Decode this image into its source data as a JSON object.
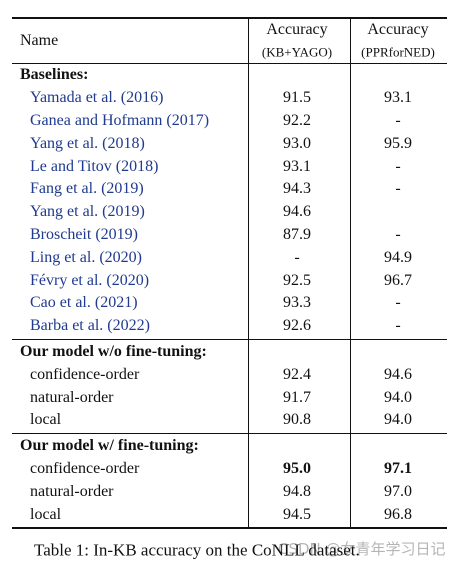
{
  "table": {
    "header": {
      "name": "Name",
      "col1": [
        "Accuracy",
        "(KB+YAGO)"
      ],
      "col2": [
        "Accuracy",
        "(PPRforNED)"
      ]
    },
    "sections": [
      {
        "title": "Baselines:",
        "name_color": "#1f3a8f",
        "rows": [
          [
            "Yamada et al. (2016)",
            "91.5",
            "93.1"
          ],
          [
            "Ganea and Hofmann (2017)",
            "92.2",
            "-"
          ],
          [
            "Yang et al. (2018)",
            "93.0",
            "95.9"
          ],
          [
            "Le and Titov (2018)",
            "93.1",
            "-"
          ],
          [
            "Fang et al. (2019)",
            "94.3",
            "-"
          ],
          [
            "Yang et al. (2019)",
            "94.6",
            ""
          ],
          [
            "Broscheit (2019)",
            "87.9",
            "-"
          ],
          [
            "Ling et al. (2020)",
            "-",
            "94.9"
          ],
          [
            "Févry et al. (2020)",
            "92.5",
            "96.7"
          ],
          [
            "Cao et al. (2021)",
            "93.3",
            "-"
          ],
          [
            "Barba et al. (2022)",
            "92.6",
            "-"
          ]
        ]
      },
      {
        "title": "Our model w/o fine-tuning:",
        "name_color": "#111111",
        "rows": [
          [
            "confidence-order",
            "92.4",
            "94.6"
          ],
          [
            "natural-order",
            "91.7",
            "94.0"
          ],
          [
            "local",
            "90.8",
            "94.0"
          ]
        ]
      },
      {
        "title": "Our model w/ fine-tuning:",
        "name_color": "#111111",
        "bold_rows": [
          0
        ],
        "rows": [
          [
            "confidence-order",
            "95.0",
            "97.1"
          ],
          [
            "natural-order",
            "94.8",
            "97.0"
          ],
          [
            "local",
            "94.5",
            "96.8"
          ]
        ]
      }
    ]
  },
  "caption": "Table 1: In-KB accuracy on the CoNLL dataset.",
  "watermark": "CSDN @女青年学习日记"
}
